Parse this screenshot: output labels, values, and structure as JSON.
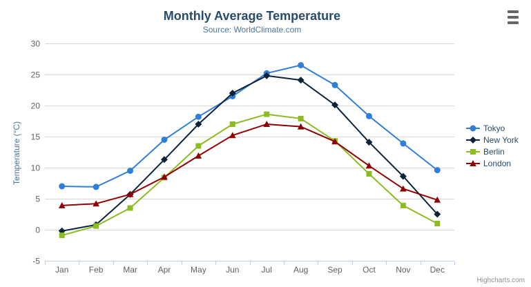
{
  "chart_data": {
    "type": "line",
    "title": "Monthly Average Temperature",
    "subtitle": "Source: WorldClimate.com",
    "xlabel": "",
    "ylabel": "Temperature (°C)",
    "categories": [
      "Jan",
      "Feb",
      "Mar",
      "Apr",
      "May",
      "Jun",
      "Jul",
      "Aug",
      "Sep",
      "Oct",
      "Nov",
      "Dec"
    ],
    "ylim": [
      -5,
      30
    ],
    "y_ticks": [
      -5,
      0,
      5,
      10,
      15,
      20,
      25,
      30
    ],
    "grid": true,
    "legend_position": "right",
    "series": [
      {
        "name": "Tokyo",
        "color": "#2f7ed8",
        "marker": "circle",
        "values": [
          7.0,
          6.9,
          9.5,
          14.5,
          18.2,
          21.5,
          25.2,
          26.5,
          23.3,
          18.3,
          13.9,
          9.6
        ]
      },
      {
        "name": "New York",
        "color": "#0d233a",
        "marker": "diamond",
        "values": [
          -0.2,
          0.8,
          5.7,
          11.3,
          17.0,
          22.0,
          24.8,
          24.1,
          20.1,
          14.1,
          8.6,
          2.5
        ]
      },
      {
        "name": "Berlin",
        "color": "#8bbc21",
        "marker": "square",
        "values": [
          -0.9,
          0.6,
          3.5,
          8.4,
          13.5,
          17.0,
          18.6,
          17.9,
          14.3,
          9.0,
          3.9,
          1.0
        ]
      },
      {
        "name": "London",
        "color": "#910000",
        "marker": "triangle",
        "values": [
          3.9,
          4.2,
          5.7,
          8.5,
          11.9,
          15.2,
          17.0,
          16.6,
          14.2,
          10.3,
          6.6,
          4.8
        ]
      }
    ]
  },
  "colors": {
    "title": "#274b6d",
    "subtitle": "#4d759e",
    "axis_title": "#4d759e",
    "axis_labels": "#606060",
    "gridline": "#d8d8d8",
    "x_axis_line": "#c0d0e0",
    "legend_text": "#274b6d",
    "credit_text": "#909090",
    "export_icon": "#666666"
  },
  "export_menu": {
    "icon": "hamburger-icon"
  },
  "credit": {
    "label": "Highcharts.com"
  }
}
